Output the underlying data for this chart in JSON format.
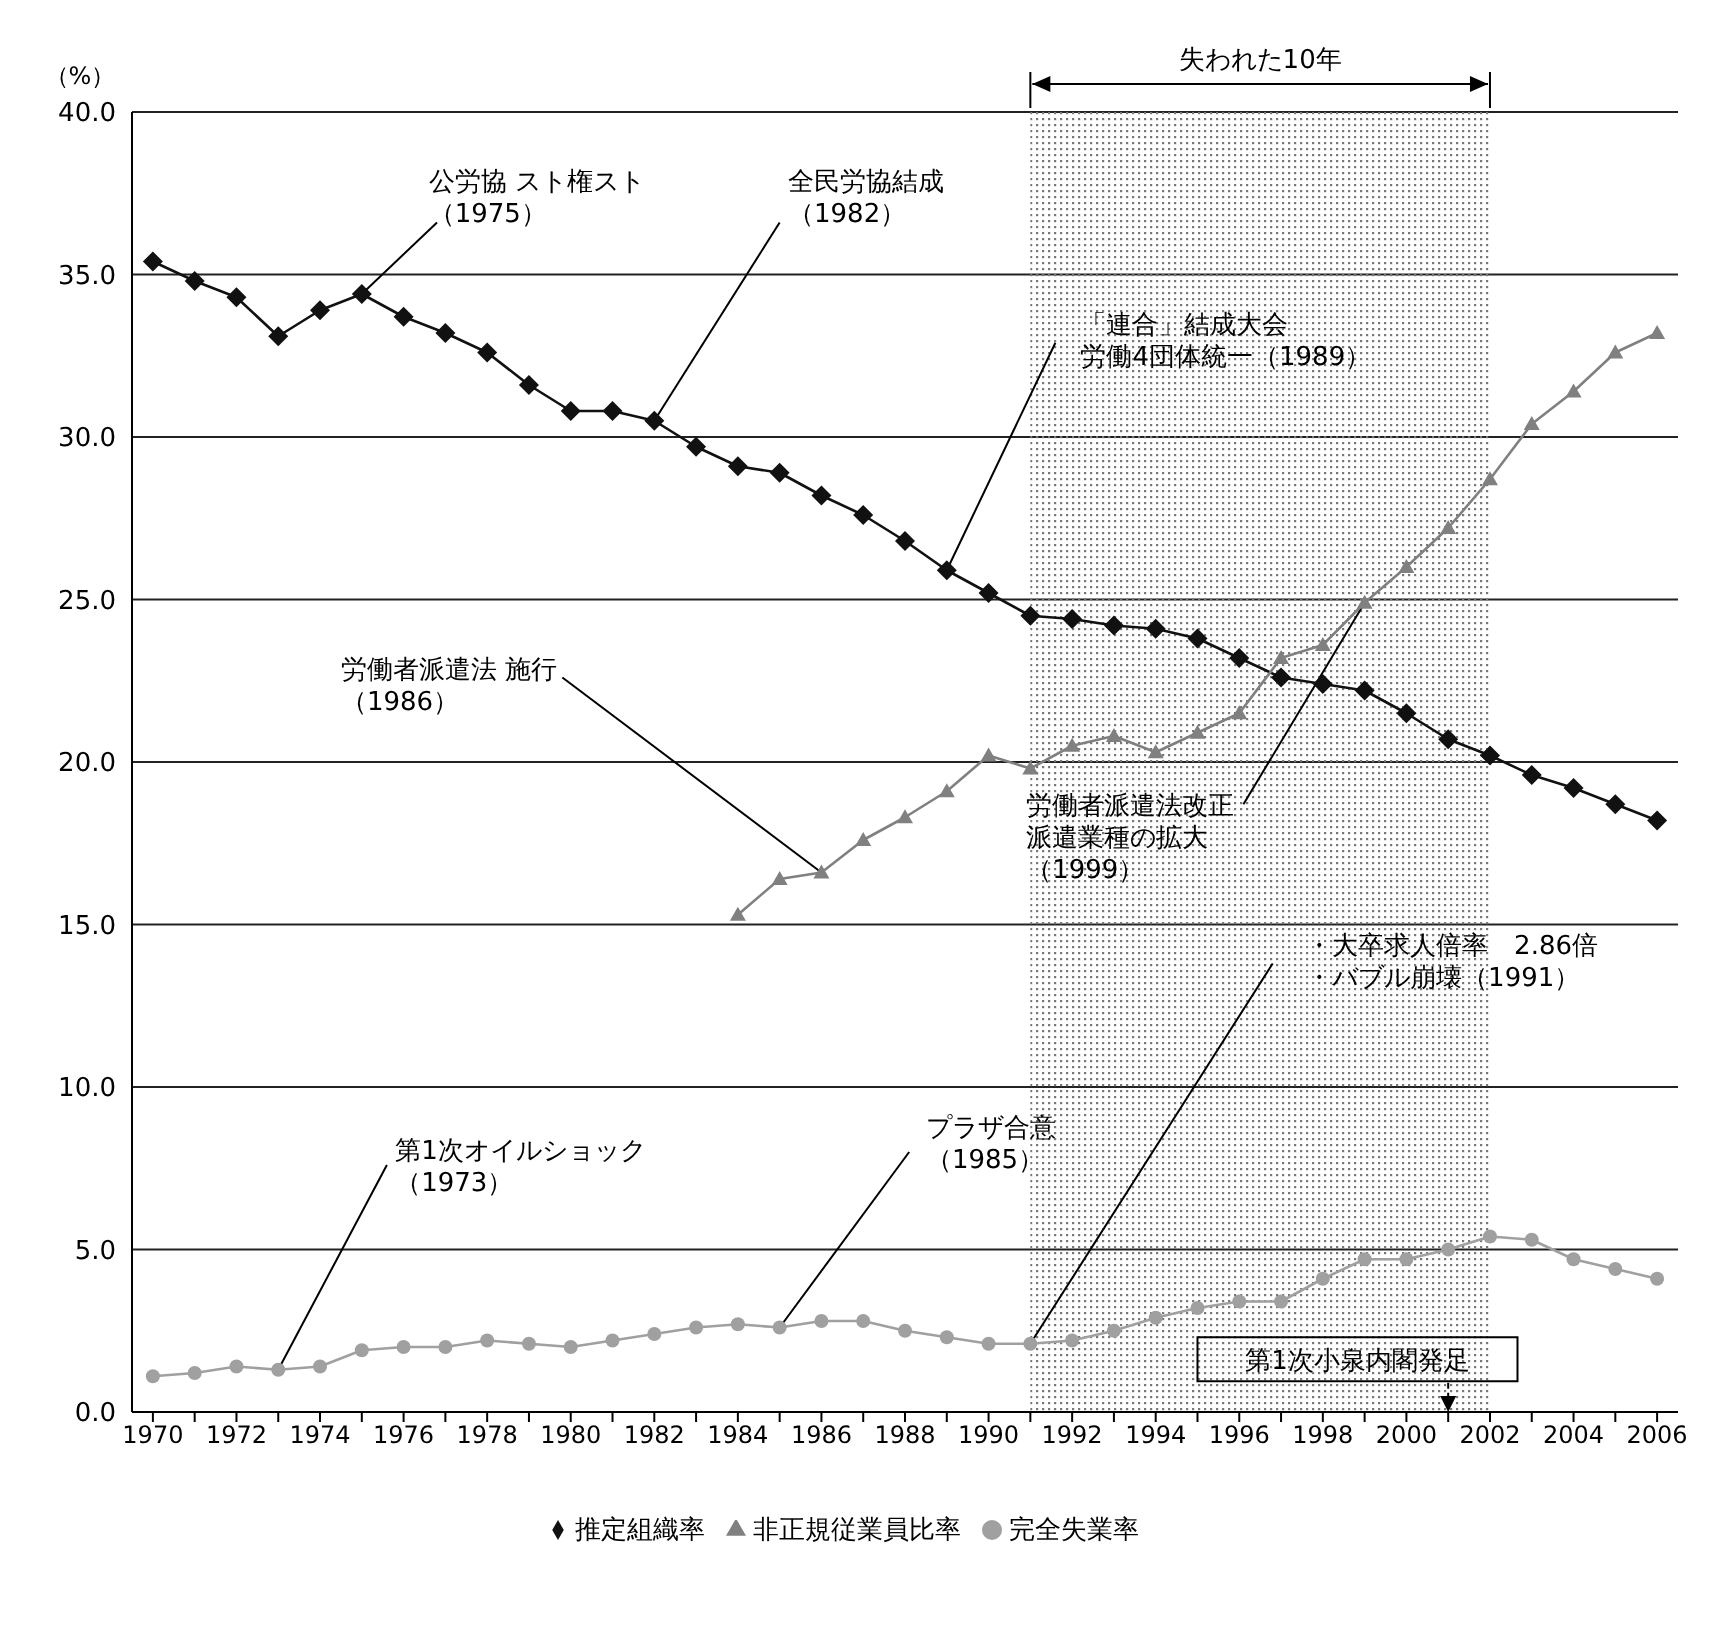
{
  "chart_data": {
    "type": "line",
    "ylabel": "（%）",
    "x": [
      1970,
      1971,
      1972,
      1973,
      1974,
      1975,
      1976,
      1977,
      1978,
      1979,
      1980,
      1981,
      1982,
      1983,
      1984,
      1985,
      1986,
      1987,
      1988,
      1989,
      1990,
      1991,
      1992,
      1993,
      1994,
      1995,
      1996,
      1997,
      1998,
      1999,
      2000,
      2001,
      2002,
      2003,
      2004,
      2005,
      2006
    ],
    "series": [
      {
        "name": "推定組織率",
        "color": "#111111",
        "marker": "diamond",
        "values": [
          35.4,
          34.8,
          34.3,
          33.1,
          33.9,
          34.4,
          33.7,
          33.2,
          32.6,
          31.6,
          30.8,
          30.8,
          30.5,
          29.7,
          29.1,
          28.9,
          28.2,
          27.6,
          26.8,
          25.9,
          25.2,
          24.5,
          24.4,
          24.2,
          24.1,
          23.8,
          23.2,
          22.6,
          22.4,
          22.2,
          21.5,
          20.7,
          20.2,
          19.6,
          19.2,
          18.7,
          18.2
        ]
      },
      {
        "name": "非正規従業員比率",
        "color": "#808080",
        "marker": "triangle",
        "values": [
          null,
          null,
          null,
          null,
          null,
          null,
          null,
          null,
          null,
          null,
          null,
          null,
          null,
          null,
          15.3,
          16.4,
          16.6,
          17.6,
          18.3,
          19.1,
          20.2,
          19.8,
          20.5,
          20.8,
          20.3,
          20.9,
          21.5,
          23.2,
          23.6,
          24.9,
          26.0,
          27.2,
          28.7,
          30.4,
          31.4,
          32.6,
          33.2
        ]
      },
      {
        "name": "完全失業率",
        "color": "#a0a0a0",
        "marker": "circle",
        "values": [
          1.1,
          1.2,
          1.4,
          1.3,
          1.4,
          1.9,
          2.0,
          2.0,
          2.2,
          2.1,
          2.0,
          2.2,
          2.4,
          2.6,
          2.7,
          2.6,
          2.8,
          2.8,
          2.5,
          2.3,
          2.1,
          2.1,
          2.2,
          2.5,
          2.9,
          3.2,
          3.4,
          3.4,
          4.1,
          4.7,
          4.7,
          5.0,
          5.4,
          5.3,
          4.7,
          4.4,
          4.1
        ]
      }
    ],
    "xlim": [
      1969.5,
      2006.5
    ],
    "xticks": [
      1970,
      {
        "value": 1971,
        "label": null
      },
      1972,
      {
        "value": 1973,
        "label": null
      },
      1974,
      {
        "value": 1975,
        "label": null
      },
      1976,
      {
        "value": 1977,
        "label": null
      },
      1978,
      {
        "value": 1979,
        "label": null
      },
      1980,
      {
        "value": 1981,
        "label": null
      },
      1982,
      {
        "value": 1983,
        "label": null
      },
      1984,
      {
        "value": 1985,
        "label": null
      },
      1986,
      {
        "value": 1987,
        "label": null
      },
      1988,
      {
        "value": 1989,
        "label": null
      },
      1990,
      {
        "value": 1991,
        "label": null
      },
      1992,
      {
        "value": 1993,
        "label": null
      },
      1994,
      {
        "value": 1995,
        "label": null
      },
      1996,
      {
        "value": 1997,
        "label": null
      },
      1998,
      {
        "value": 1999,
        "label": null
      },
      2000,
      {
        "value": 2001,
        "label": null
      },
      2002,
      {
        "value": 2003,
        "label": null
      },
      2004,
      {
        "value": 2005,
        "label": null
      },
      2006
    ],
    "ylim": [
      0,
      40
    ],
    "yticks": [
      {
        "value": 0,
        "label": "0.0"
      },
      {
        "value": 5,
        "label": "5.0"
      },
      {
        "value": 10,
        "label": "10.0"
      },
      {
        "value": 15,
        "label": "15.0"
      },
      {
        "value": 20,
        "label": "20.0"
      },
      {
        "value": 25,
        "label": "25.0"
      },
      {
        "value": 30,
        "label": "30.0"
      },
      {
        "value": 35,
        "label": "35.0"
      },
      {
        "value": 40,
        "label": "40.0"
      }
    ],
    "bands": [
      {
        "axis": "x",
        "from": 1991,
        "to": 2002,
        "label": "失われた10年",
        "color": "#777777"
      }
    ],
    "annotations": [
      {
        "text": "公労協 スト権スト（1975）",
        "x": 1975,
        "y": 34.4
      },
      {
        "text": "全民労協結成（1982）",
        "x": 1982,
        "y": 30.5
      },
      {
        "text": "「連合」結成大会労働4団体統一（1989）",
        "x": 1989,
        "y": 25.9
      },
      {
        "text": "労働者派遣法 施行（1986）",
        "x": 1986,
        "y": 16.6
      },
      {
        "text": "労働者派遣法改正派遣業種の拡大（1999）",
        "x": 1999,
        "y": 24.9
      },
      {
        "text": "・大卒求人倍率　2.86倍・バブル崩壊（1991）",
        "x": 1991,
        "y": 2.1
      },
      {
        "text": "第1次オイルショック（1973）",
        "x": 1973,
        "y": 1.3
      },
      {
        "text": "プラザ合意（1985）",
        "x": 1985,
        "y": 2.6
      },
      {
        "text": "第1次小泉内閣発足",
        "x": 2001,
        "y": 0
      }
    ],
    "grid": "y",
    "legend": "bottom",
    "line_style": "solid"
  }
}
